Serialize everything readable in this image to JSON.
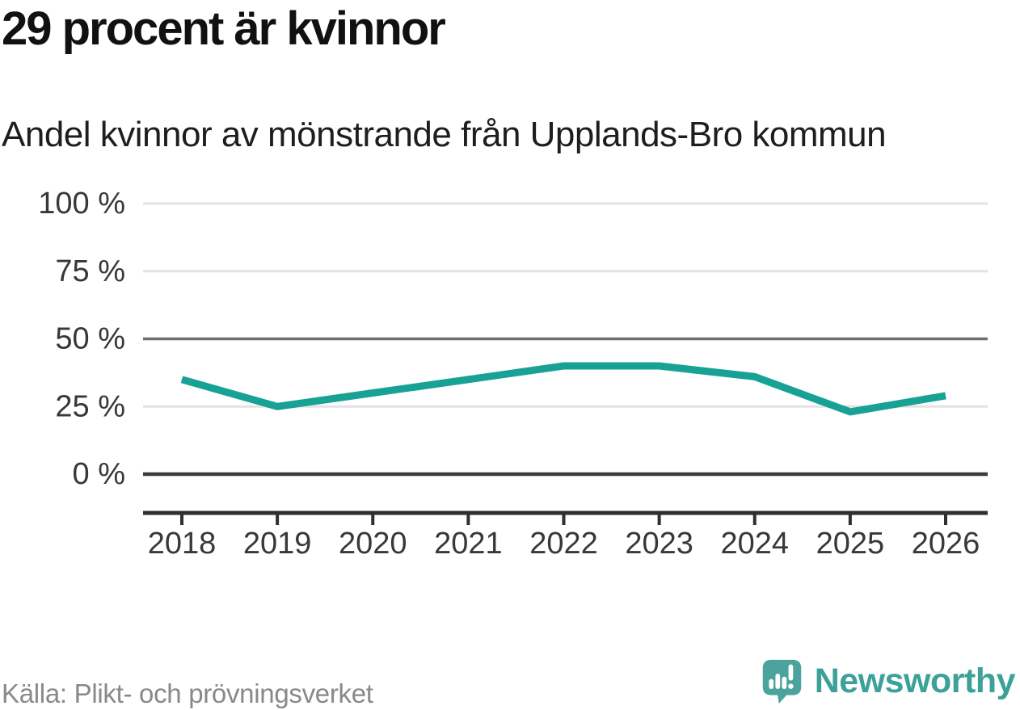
{
  "title": "29 procent är kvinnor",
  "subtitle": "Andel kvinnor av mönstrande från Upplands-Bro kommun",
  "source": "Källa: Plikt- och prövningsverket",
  "branding": {
    "name": "Newsworthy",
    "logo_icon": "newsworthy-speech-bubble-bars-icon",
    "brand_color": "#3ba199",
    "icon_color": "#4aa49d"
  },
  "colors": {
    "line": "#17a295",
    "grid_light": "#e3e3e3",
    "grid_reference": "#6f6f6f",
    "grid_zero": "#3a3a3a",
    "axis": "#2f2f2f",
    "axis_text": "#383838",
    "title_text": "#111111",
    "source_text": "#898989"
  },
  "chart_data": {
    "type": "line",
    "title": "29 procent är kvinnor",
    "subtitle": "Andel kvinnor av mönstrande från Upplands-Bro kommun",
    "xlabel": "",
    "ylabel": "",
    "unit": "%",
    "x": [
      "2018",
      "2019",
      "2020",
      "2021",
      "2022",
      "2023",
      "2024",
      "2025",
      "2026"
    ],
    "series": [
      {
        "name": "Andel kvinnor av mönstrande",
        "values": [
          35,
          25,
          30,
          35,
          40,
          40,
          36,
          23,
          29
        ]
      }
    ],
    "ylim": [
      0,
      100
    ],
    "yticks": [
      {
        "value": 0,
        "label": "0 %"
      },
      {
        "value": 25,
        "label": "25 %"
      },
      {
        "value": 50,
        "label": "50 %"
      },
      {
        "value": 75,
        "label": "75 %"
      },
      {
        "value": 100,
        "label": "100 %"
      }
    ],
    "reference_line": 50,
    "grid": "horizontal",
    "legend": "none",
    "markers": "none"
  }
}
